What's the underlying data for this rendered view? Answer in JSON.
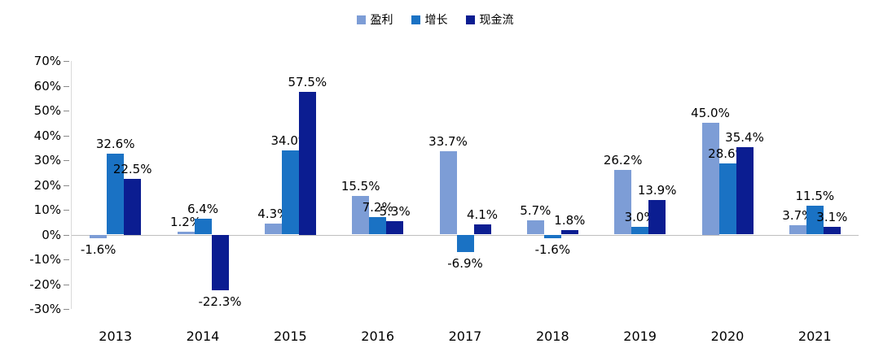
{
  "chart_data": {
    "type": "bar",
    "title": "",
    "categories": [
      "2013",
      "2014",
      "2015",
      "2016",
      "2017",
      "2018",
      "2019",
      "2020",
      "2021"
    ],
    "series": [
      {
        "name": "盈利",
        "key": "profit",
        "color": "#7d9dd6",
        "values": [
          -1.6,
          1.2,
          4.3,
          15.5,
          33.7,
          5.7,
          26.2,
          45.0,
          3.7
        ],
        "labels": [
          "-1.6%",
          "1.2%",
          "4.3%",
          "15.5%",
          "33.7%",
          "5.7%",
          "26.2%",
          "45.0%",
          "3.7%"
        ]
      },
      {
        "name": "增长",
        "key": "growth",
        "color": "#1a72c4",
        "values": [
          32.6,
          6.4,
          34.0,
          7.2,
          -6.9,
          -1.6,
          3.0,
          28.6,
          11.5
        ],
        "labels": [
          "32.6%",
          "6.4%",
          "34.0%",
          "7.2%",
          "-6.9%",
          "-1.6%",
          "3.0%",
          "28.6%",
          "11.5%"
        ]
      },
      {
        "name": "现金流",
        "key": "cashflow",
        "color": "#0b1d91",
        "values": [
          22.5,
          -22.3,
          57.5,
          5.3,
          4.1,
          1.8,
          13.9,
          35.4,
          3.1
        ],
        "labels": [
          "22.5%",
          "-22.3%",
          "57.5%",
          "5.3%",
          "4.1%",
          "1.8%",
          "13.9%",
          "35.4%",
          "3.1%"
        ]
      }
    ],
    "ylim": [
      -30,
      70
    ],
    "yticks": [
      "70%",
      "60%",
      "50%",
      "40%",
      "30%",
      "20%",
      "10%",
      "0%",
      "-10%",
      "-20%",
      "-30%"
    ],
    "grid": "off",
    "legend_position": "top"
  }
}
